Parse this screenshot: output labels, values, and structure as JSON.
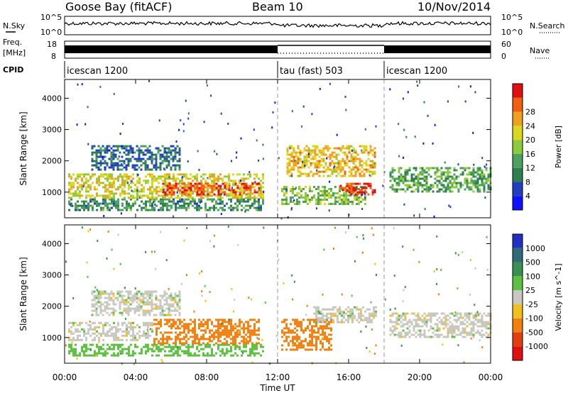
{
  "header": {
    "station": "Goose Bay (fitACF)",
    "beam": "Beam 10",
    "date": "10/Nov/2014"
  },
  "strips": {
    "nsky_label": "N.Sky",
    "nsky_top_tick": "10^5",
    "nsky_bottom_tick": "10^0",
    "nsearch_label": "N.Search",
    "nsearch_top_tick": "10^5",
    "nsearch_bottom_tick": "10^0",
    "freq_label": "Freq.",
    "freq_unit": "[MHz]",
    "freq_ticks": [
      "18",
      "8"
    ],
    "nave_label": "Nave",
    "nave_ticks": [
      "60",
      "0"
    ],
    "cpid_label": "CPID",
    "cpid_segments": [
      {
        "label": "icescan 1200",
        "start_hour": 0,
        "end_hour": 12
      },
      {
        "label": "tau (fast) 503",
        "start_hour": 12,
        "end_hour": 18
      },
      {
        "label": "icescan 1200",
        "start_hour": 18,
        "end_hour": 24
      }
    ]
  },
  "chart_data": [
    {
      "type": "heatmap",
      "title": "",
      "xlabel": "Time UT",
      "ylabel": "Slant Range [km]",
      "x_ticks": [
        "00:00",
        "04:00",
        "08:00",
        "12:00",
        "16:00",
        "20:00",
        "00:00"
      ],
      "xlim_hours": [
        0,
        24
      ],
      "y_ticks": [
        "1000",
        "2000",
        "3000",
        "4000"
      ],
      "ylim_km": [
        180,
        4600
      ],
      "colorbar": {
        "label": "Power [dB]",
        "ticks": [
          "4",
          "8",
          "12",
          "16",
          "20",
          "24",
          "28"
        ],
        "range": [
          0,
          30
        ],
        "colors": [
          "#1010ff",
          "#2040c0",
          "#2e7f50",
          "#4ca060",
          "#8ccc3a",
          "#d8d820",
          "#f0a020",
          "#f06010",
          "#e01010"
        ]
      },
      "echo_bands": [
        {
          "start_hour": 0.2,
          "end_hour": 11.2,
          "min_km": 400,
          "max_km": 800,
          "value": 10
        },
        {
          "start_hour": 0.2,
          "end_hour": 11.2,
          "min_km": 800,
          "max_km": 1600,
          "value": 18
        },
        {
          "start_hour": 1.5,
          "end_hour": 6.5,
          "min_km": 1700,
          "max_km": 2500,
          "value": 7
        },
        {
          "start_hour": 5.5,
          "end_hour": 11.0,
          "min_km": 900,
          "max_km": 1300,
          "value": 26
        },
        {
          "start_hour": 12.5,
          "end_hour": 17.5,
          "min_km": 1500,
          "max_km": 2500,
          "value": 20
        },
        {
          "start_hour": 12.2,
          "end_hour": 17.0,
          "min_km": 600,
          "max_km": 1200,
          "value": 14
        },
        {
          "start_hour": 15.5,
          "end_hour": 17.5,
          "min_km": 900,
          "max_km": 1300,
          "value": 27
        },
        {
          "start_hour": 18.3,
          "end_hour": 24.0,
          "min_km": 1000,
          "max_km": 1800,
          "value": 12
        }
      ]
    },
    {
      "type": "heatmap",
      "title": "",
      "xlabel": "Time UT",
      "ylabel": "Slant Range [km]",
      "x_ticks": [
        "00:00",
        "04:00",
        "08:00",
        "12:00",
        "16:00",
        "20:00",
        "00:00"
      ],
      "xlim_hours": [
        0,
        24
      ],
      "y_ticks": [
        "1000",
        "2000",
        "3000",
        "4000"
      ],
      "ylim_km": [
        180,
        4600
      ],
      "colorbar": {
        "label": "Velocity [m s^-1]",
        "ticks": [
          "1000",
          "500",
          "100",
          "25",
          "-25",
          "-100",
          "-500",
          "-1000"
        ],
        "colors": [
          "#2030c0",
          "#2e6a78",
          "#3a9050",
          "#5cc040",
          "#c8c8c0",
          "#f0c020",
          "#f08010",
          "#e04010",
          "#e01010"
        ]
      },
      "echo_bands": [
        {
          "start_hour": 0.2,
          "end_hour": 11.2,
          "min_km": 400,
          "max_km": 800,
          "value": 60
        },
        {
          "start_hour": 1.5,
          "end_hour": 6.5,
          "min_km": 1700,
          "max_km": 2500,
          "value": 0
        },
        {
          "start_hour": 0.2,
          "end_hour": 5.0,
          "min_km": 900,
          "max_km": 1500,
          "value": 0
        },
        {
          "start_hour": 5.0,
          "end_hour": 11.0,
          "min_km": 800,
          "max_km": 1600,
          "value": -300
        },
        {
          "start_hour": 12.2,
          "end_hour": 15.0,
          "min_km": 600,
          "max_km": 1600,
          "value": -300
        },
        {
          "start_hour": 14.0,
          "end_hour": 17.5,
          "min_km": 1500,
          "max_km": 2000,
          "value": 0
        },
        {
          "start_hour": 18.3,
          "end_hour": 24.0,
          "min_km": 1000,
          "max_km": 1800,
          "value": 0
        }
      ]
    }
  ]
}
